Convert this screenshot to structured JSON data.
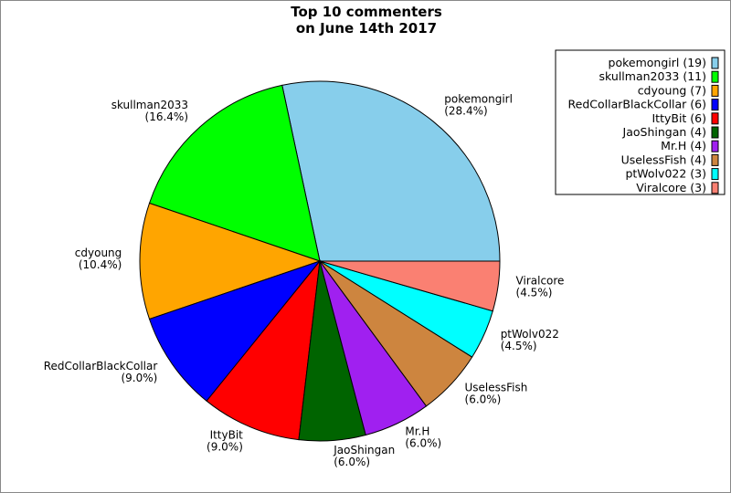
{
  "chart_data": {
    "type": "pie",
    "title": [
      "Top 10 commenters",
      "on June 14th 2017"
    ],
    "start_angle_deg": 0,
    "direction": "counterclockwise",
    "legend_placement": "top-right",
    "slices": [
      {
        "name": "pokemongirl",
        "value": 19,
        "percent": "28.4%",
        "legend": "pokemongirl (19)",
        "color": "#87CEEB"
      },
      {
        "name": "skullman2033",
        "value": 11,
        "percent": "16.4%",
        "legend": "skullman2033 (11)",
        "color": "#00FF00"
      },
      {
        "name": "cdyoung",
        "value": 7,
        "percent": "10.4%",
        "legend": "cdyoung (7)",
        "color": "#FFA500"
      },
      {
        "name": "RedCollarBlackCollar",
        "value": 6,
        "percent": "9.0%",
        "legend": "RedCollarBlackCollar (6)",
        "color": "#0000FF"
      },
      {
        "name": "IttyBit",
        "value": 6,
        "percent": "9.0%",
        "legend": "IttyBit (6)",
        "color": "#FF0000"
      },
      {
        "name": "JaoShingan",
        "value": 4,
        "percent": "6.0%",
        "legend": "JaoShingan (4)",
        "color": "#006400"
      },
      {
        "name": "Mr.H",
        "value": 4,
        "percent": "6.0%",
        "legend": "Mr.H (4)",
        "color": "#A020F0"
      },
      {
        "name": "UselessFish",
        "value": 4,
        "percent": "6.0%",
        "legend": "UselessFish (4)",
        "color": "#CD853F"
      },
      {
        "name": "ptWolv022",
        "value": 3,
        "percent": "4.5%",
        "legend": "ptWolv022 (3)",
        "color": "#00FFFF"
      },
      {
        "name": "Viralcore",
        "value": 3,
        "percent": "4.5%",
        "legend": "Viralcore (3)",
        "color": "#FA8072"
      }
    ]
  }
}
